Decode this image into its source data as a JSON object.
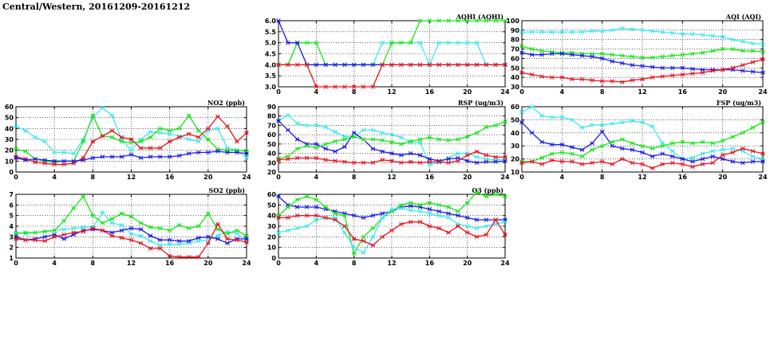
{
  "page": {
    "title": "Central/Western, 20161209-20161212"
  },
  "colors": {
    "red": "#e8141e",
    "blue": "#1a1ae6",
    "green": "#18e618",
    "cyan": "#3ee8f0"
  },
  "chart_data": [
    {
      "id": "no2",
      "type": "line",
      "title": "NO2 (ppb)",
      "xlim": [
        0,
        24
      ],
      "xticks": [
        0,
        4,
        8,
        12,
        16,
        20,
        24
      ],
      "ylim": [
        0,
        60
      ],
      "yticks": [
        0,
        10,
        20,
        30,
        40,
        50,
        60
      ],
      "grid": true,
      "x": [
        0,
        1,
        2,
        3,
        4,
        5,
        6,
        7,
        8,
        9,
        10,
        11,
        12,
        13,
        14,
        15,
        16,
        17,
        18,
        19,
        20,
        21,
        22,
        23,
        24
      ],
      "series": [
        {
          "color": "cyan",
          "values": [
            42,
            38,
            32,
            28,
            18,
            18,
            17,
            30,
            50,
            59,
            52,
            30,
            20,
            30,
            37,
            36,
            35,
            33,
            30,
            28,
            38,
            40,
            22,
            20,
            13
          ]
        },
        {
          "color": "green",
          "values": [
            21,
            19,
            12,
            10,
            9,
            10,
            10,
            28,
            52,
            33,
            32,
            28,
            27,
            28,
            32,
            40,
            38,
            40,
            52,
            38,
            30,
            21,
            20,
            20,
            19
          ]
        },
        {
          "color": "red",
          "values": [
            14,
            12,
            9,
            8,
            7,
            7,
            8,
            13,
            28,
            33,
            38,
            32,
            30,
            22,
            22,
            22,
            28,
            32,
            35,
            32,
            40,
            51,
            42,
            28,
            36
          ]
        },
        {
          "color": "blue",
          "values": [
            13,
            11,
            12,
            11,
            10,
            10,
            10,
            11,
            13,
            14,
            14,
            14,
            16,
            13,
            14,
            14,
            14,
            15,
            17,
            18,
            18,
            19,
            18,
            18,
            17
          ]
        }
      ]
    },
    {
      "id": "so2",
      "type": "line",
      "title": "SO2 (ppb)",
      "xlim": [
        0,
        24
      ],
      "xticks": [
        0,
        4,
        8,
        12,
        16,
        20,
        24
      ],
      "ylim": [
        1,
        7
      ],
      "yticks": [
        1,
        2,
        3,
        4,
        5,
        6,
        7
      ],
      "grid": true,
      "x": [
        0,
        1,
        2,
        3,
        4,
        5,
        6,
        7,
        8,
        9,
        10,
        11,
        12,
        13,
        14,
        15,
        16,
        17,
        18,
        19,
        20,
        21,
        22,
        23,
        24
      ],
      "series": [
        {
          "color": "cyan",
          "values": [
            3.4,
            3.3,
            3.4,
            3.5,
            3.6,
            3.7,
            3.8,
            3.9,
            3.9,
            5.3,
            4.3,
            4.1,
            3.3,
            3.1,
            2.6,
            2.2,
            2.3,
            2.3,
            2.4,
            2.6,
            2.7,
            3.1,
            3.5,
            3.3,
            2.6
          ]
        },
        {
          "color": "green",
          "values": [
            3.3,
            3.4,
            3.4,
            3.5,
            3.6,
            4.5,
            5.7,
            6.8,
            5.0,
            4.3,
            4.7,
            5.2,
            4.9,
            4.3,
            3.9,
            3.8,
            3.6,
            4.1,
            3.8,
            4.0,
            5.2,
            3.7,
            3.3,
            3.6,
            3.1
          ]
        },
        {
          "color": "blue",
          "values": [
            3.0,
            2.7,
            2.8,
            3.0,
            3.2,
            2.8,
            3.2,
            3.6,
            3.7,
            3.6,
            3.4,
            3.6,
            3.8,
            3.7,
            3.1,
            2.7,
            2.7,
            2.6,
            2.6,
            2.9,
            3.0,
            2.8,
            2.4,
            2.8,
            2.8
          ]
        },
        {
          "color": "red",
          "values": [
            2.8,
            2.7,
            2.7,
            2.6,
            3.0,
            3.2,
            3.4,
            3.5,
            3.8,
            3.6,
            3.1,
            2.9,
            2.7,
            2.4,
            1.9,
            1.9,
            1.2,
            1.1,
            1.1,
            1.1,
            2.4,
            4.2,
            2.8,
            2.7,
            2.5
          ]
        }
      ]
    },
    {
      "id": "aqhi",
      "type": "line",
      "title": "AQHI (AQHI)",
      "xlim": [
        0,
        24
      ],
      "xticks": [
        0,
        4,
        8,
        12,
        16,
        20,
        24
      ],
      "ylim": [
        3.0,
        6.0
      ],
      "yticks": [
        3.0,
        3.5,
        4.0,
        4.5,
        5.0,
        5.5,
        6.0
      ],
      "ytick_labels": [
        "3.0",
        "3.5",
        "4.0",
        "4.5",
        "5.0",
        "5.5",
        "6.0"
      ],
      "grid": true,
      "x": [
        0,
        1,
        2,
        3,
        4,
        5,
        6,
        7,
        8,
        9,
        10,
        11,
        12,
        13,
        14,
        15,
        16,
        17,
        18,
        19,
        20,
        21,
        22,
        23,
        24
      ],
      "series": [
        {
          "color": "cyan",
          "values": [
            4,
            4,
            5,
            4,
            4,
            4,
            4,
            4,
            4,
            4,
            4,
            5,
            5,
            5,
            5,
            5,
            4,
            5,
            5,
            5,
            5,
            5,
            4,
            4,
            4
          ]
        },
        {
          "color": "green",
          "values": [
            4,
            4,
            5,
            5,
            5,
            4,
            4,
            4,
            4,
            4,
            4,
            4,
            5,
            5,
            5,
            6,
            6,
            6,
            6,
            6,
            6,
            6,
            6,
            6,
            6
          ]
        },
        {
          "color": "blue",
          "values": [
            6,
            5,
            5,
            4,
            4,
            4,
            4,
            4,
            4,
            4,
            4,
            4,
            4,
            4,
            4,
            4,
            4,
            4,
            4,
            4,
            4,
            4,
            4,
            4,
            4
          ]
        },
        {
          "color": "red",
          "values": [
            4,
            4,
            4,
            4,
            3,
            3,
            3,
            3,
            3,
            3,
            3,
            4,
            4,
            4,
            4,
            4,
            4,
            4,
            4,
            4,
            4,
            4,
            4,
            4,
            4
          ]
        }
      ]
    },
    {
      "id": "rsp",
      "type": "line",
      "title": "RSP (ug/m3)",
      "xlim": [
        0,
        24
      ],
      "xticks": [
        0,
        4,
        8,
        12,
        16,
        20,
        24
      ],
      "ylim": [
        20,
        90
      ],
      "yticks": [
        20,
        30,
        40,
        50,
        60,
        70,
        80,
        90
      ],
      "grid": true,
      "x": [
        0,
        1,
        2,
        3,
        4,
        5,
        6,
        7,
        8,
        9,
        10,
        11,
        12,
        13,
        14,
        15,
        16,
        17,
        18,
        19,
        20,
        21,
        22,
        23,
        24
      ],
      "series": [
        {
          "color": "cyan",
          "values": [
            75,
            81,
            72,
            70,
            70,
            68,
            63,
            58,
            58,
            65,
            65,
            62,
            60,
            57,
            52,
            52,
            28,
            30,
            35,
            40,
            40,
            36,
            34,
            33,
            34
          ]
        },
        {
          "color": "blue",
          "values": [
            75,
            65,
            55,
            50,
            50,
            45,
            42,
            47,
            62,
            55,
            45,
            42,
            40,
            38,
            40,
            38,
            34,
            32,
            34,
            35,
            32,
            30,
            31,
            31,
            32
          ]
        },
        {
          "color": "green",
          "values": [
            34,
            37,
            45,
            48,
            46,
            50,
            53,
            55,
            58,
            55,
            55,
            54,
            52,
            50,
            53,
            55,
            57,
            55,
            54,
            55,
            58,
            62,
            68,
            70,
            74
          ]
        },
        {
          "color": "red",
          "values": [
            33,
            34,
            35,
            35,
            35,
            33,
            32,
            31,
            30,
            30,
            30,
            33,
            32,
            30,
            31,
            30,
            31,
            31,
            30,
            32,
            38,
            42,
            38,
            36,
            36
          ]
        }
      ]
    },
    {
      "id": "o3",
      "type": "line",
      "title": "O3 (ppb)",
      "xlim": [
        0,
        24
      ],
      "xticks": [
        0,
        4,
        8,
        12,
        16,
        20,
        24
      ],
      "ylim": [
        0,
        60
      ],
      "yticks": [
        0,
        10,
        20,
        30,
        40,
        50,
        60
      ],
      "grid": true,
      "x": [
        0,
        1,
        2,
        3,
        4,
        5,
        6,
        7,
        8,
        9,
        10,
        11,
        12,
        13,
        14,
        15,
        16,
        17,
        18,
        19,
        20,
        21,
        22,
        23,
        24
      ],
      "series": [
        {
          "color": "blue",
          "values": [
            58,
            50,
            48,
            48,
            48,
            46,
            44,
            42,
            40,
            38,
            40,
            42,
            44,
            48,
            49,
            48,
            46,
            44,
            42,
            40,
            38,
            36,
            36,
            36,
            36
          ]
        },
        {
          "color": "green",
          "values": [
            40,
            48,
            55,
            58,
            55,
            48,
            42,
            40,
            4,
            20,
            28,
            38,
            44,
            50,
            52,
            50,
            52,
            50,
            48,
            44,
            52,
            62,
            58,
            60,
            58
          ]
        },
        {
          "color": "cyan",
          "values": [
            24,
            26,
            28,
            30,
            36,
            38,
            38,
            24,
            10,
            5,
            20,
            38,
            46,
            47,
            45,
            44,
            42,
            40,
            38,
            32,
            30,
            28,
            30,
            32,
            34
          ]
        },
        {
          "color": "red",
          "values": [
            38,
            38,
            40,
            40,
            40,
            38,
            36,
            30,
            18,
            16,
            12,
            20,
            26,
            32,
            34,
            34,
            30,
            28,
            24,
            30,
            24,
            20,
            22,
            36,
            22
          ]
        }
      ]
    },
    {
      "id": "aqi",
      "type": "line",
      "title": "AQI (AQI)",
      "xlim": [
        0,
        24
      ],
      "xticks": [
        0,
        4,
        8,
        12,
        16,
        20,
        24
      ],
      "ylim": [
        30,
        100
      ],
      "yticks": [
        30,
        40,
        50,
        60,
        70,
        80,
        90,
        100
      ],
      "grid": true,
      "x": [
        0,
        1,
        2,
        3,
        4,
        5,
        6,
        7,
        8,
        9,
        10,
        11,
        12,
        13,
        14,
        15,
        16,
        17,
        18,
        19,
        20,
        21,
        22,
        23,
        24
      ],
      "series": [
        {
          "color": "cyan",
          "values": [
            88,
            88,
            88,
            88,
            88,
            88,
            88,
            89,
            89,
            90,
            92,
            91,
            90,
            89,
            88,
            87,
            86,
            86,
            85,
            84,
            83,
            80,
            78,
            76,
            75
          ]
        },
        {
          "color": "green",
          "values": [
            73,
            70,
            68,
            67,
            66,
            66,
            65,
            65,
            65,
            64,
            63,
            62,
            61,
            61,
            62,
            63,
            64,
            65,
            66,
            68,
            70,
            70,
            68,
            68,
            67
          ]
        },
        {
          "color": "blue",
          "values": [
            66,
            64,
            64,
            65,
            65,
            64,
            63,
            62,
            60,
            57,
            55,
            53,
            52,
            51,
            50,
            50,
            50,
            49,
            48,
            48,
            48,
            48,
            47,
            46,
            45
          ]
        },
        {
          "color": "red",
          "values": [
            45,
            43,
            41,
            40,
            40,
            38,
            38,
            37,
            36,
            36,
            35,
            37,
            38,
            40,
            41,
            42,
            43,
            44,
            45,
            47,
            48,
            50,
            53,
            56,
            59
          ]
        }
      ]
    },
    {
      "id": "fsp",
      "type": "line",
      "title": "FSP (ug/m3)",
      "xlim": [
        0,
        24
      ],
      "xticks": [
        0,
        4,
        8,
        12,
        16,
        20,
        24
      ],
      "ylim": [
        10,
        60
      ],
      "yticks": [
        10,
        20,
        30,
        40,
        50,
        60
      ],
      "grid": true,
      "x": [
        0,
        1,
        2,
        3,
        4,
        5,
        6,
        7,
        8,
        9,
        10,
        11,
        12,
        13,
        14,
        15,
        16,
        17,
        18,
        19,
        20,
        21,
        22,
        23,
        24
      ],
      "series": [
        {
          "color": "cyan",
          "values": [
            56,
            60,
            53,
            52,
            52,
            50,
            44,
            46,
            46,
            47,
            48,
            49,
            48,
            45,
            32,
            26,
            20,
            21,
            24,
            26,
            27,
            28,
            26,
            22,
            20
          ]
        },
        {
          "color": "blue",
          "values": [
            48,
            40,
            33,
            31,
            31,
            29,
            27,
            32,
            41,
            30,
            28,
            27,
            25,
            22,
            24,
            22,
            20,
            18,
            20,
            22,
            20,
            18,
            17,
            18,
            18
          ]
        },
        {
          "color": "green",
          "values": [
            18,
            18,
            21,
            24,
            25,
            24,
            22,
            27,
            30,
            33,
            35,
            32,
            30,
            28,
            30,
            32,
            33,
            32,
            33,
            32,
            34,
            37,
            40,
            44,
            48
          ]
        },
        {
          "color": "red",
          "values": [
            17,
            18,
            16,
            19,
            18,
            18,
            16,
            17,
            18,
            16,
            20,
            17,
            16,
            13,
            16,
            17,
            16,
            14,
            16,
            17,
            23,
            25,
            28,
            26,
            24
          ]
        }
      ]
    }
  ]
}
